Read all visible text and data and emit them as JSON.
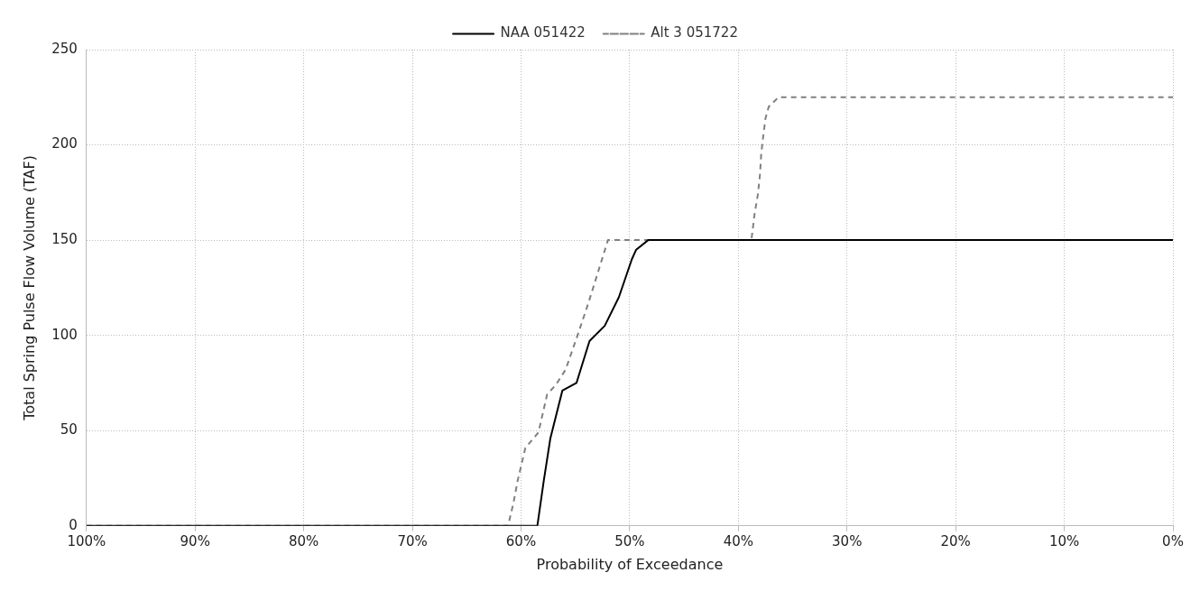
{
  "chart_data": {
    "type": "line",
    "xlabel": "Probability of Exceedance",
    "ylabel": "Total Spring Pulse Flow Volume (TAF)",
    "xlim": [
      100,
      0
    ],
    "xticks": [
      {
        "value": 100,
        "label": "100%"
      },
      {
        "value": 90,
        "label": "90%"
      },
      {
        "value": 80,
        "label": "80%"
      },
      {
        "value": 70,
        "label": "70%"
      },
      {
        "value": 60,
        "label": "60%"
      },
      {
        "value": 50,
        "label": "50%"
      },
      {
        "value": 40,
        "label": "40%"
      },
      {
        "value": 30,
        "label": "30%"
      },
      {
        "value": 20,
        "label": "20%"
      },
      {
        "value": 10,
        "label": "10%"
      },
      {
        "value": 0,
        "label": "0%"
      }
    ],
    "ylim": [
      0,
      250
    ],
    "yticks": [
      0,
      50,
      100,
      150,
      200,
      250
    ],
    "grid": true,
    "legend": "top",
    "marker": "none",
    "series": [
      {
        "name": "NAA 051422",
        "color": "#000000",
        "line_style": "solid",
        "x": [
          100,
          58.5,
          57.9,
          57.3,
          56.2,
          54.9,
          53.7,
          52.3,
          51,
          49.8,
          49.4,
          48.3,
          0
        ],
        "values": [
          0,
          0,
          24,
          46,
          71,
          75,
          97,
          105,
          120,
          140,
          145,
          150,
          150
        ]
      },
      {
        "name": "Alt 3 051722",
        "color": "#808080",
        "line_style": "dashed",
        "x": [
          100,
          61.2,
          60.7,
          60.3,
          59.6,
          58.4,
          57.6,
          56.8,
          55.9,
          54.8,
          53.8,
          52,
          38.8,
          38.5,
          38.2,
          38,
          37.9,
          37.7,
          37.5,
          37.2,
          36.3,
          0
        ],
        "values": [
          0,
          0,
          12,
          24,
          41,
          49,
          69,
          74,
          82,
          100,
          117,
          150,
          150,
          164,
          174,
          185,
          195,
          205,
          214,
          220,
          225,
          225
        ]
      }
    ]
  }
}
